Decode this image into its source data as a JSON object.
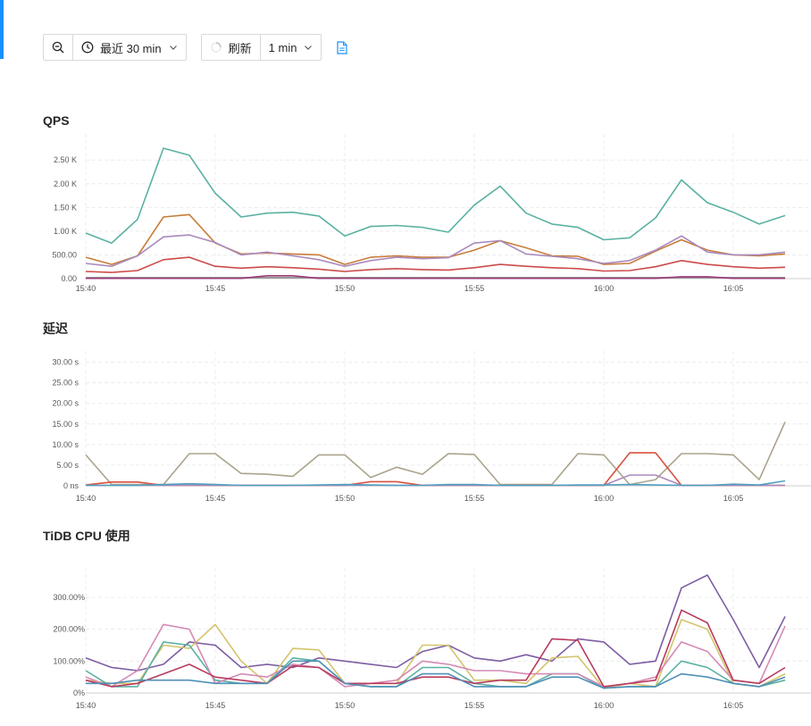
{
  "colors": {
    "accent": "#1890ff",
    "icon_blue": "#1890ff",
    "grid": "#ececec",
    "axis": "#cfcfcf"
  },
  "toolbar": {
    "zoom_out_icon": "zoom-out-icon",
    "time_range_icon": "clock-icon",
    "time_range_label": "最近 30 min",
    "refresh_icon": "spinner-icon",
    "refresh_label": "刷新",
    "refresh_interval_label": "1 min",
    "report_icon": "file-icon"
  },
  "chart_data": [
    {
      "type": "line",
      "title": "QPS",
      "x_ticks": [
        "15:40",
        "15:45",
        "15:50",
        "15:55",
        "16:00",
        "16:05"
      ],
      "x": [
        "15:40",
        "15:41",
        "15:42",
        "15:43",
        "15:44",
        "15:45",
        "15:46",
        "15:47",
        "15:48",
        "15:49",
        "15:50",
        "15:51",
        "15:52",
        "15:53",
        "15:54",
        "15:55",
        "15:56",
        "15:57",
        "15:58",
        "15:59",
        "16:00",
        "16:01",
        "16:02",
        "16:03",
        "16:04",
        "16:05",
        "16:06",
        "16:07"
      ],
      "y_ticks": [
        "0.00",
        "500.00",
        "1.00 K",
        "1.50 K",
        "2.00 K",
        "2.50 K"
      ],
      "ylim": [
        0,
        2900
      ],
      "grid": true,
      "series": [
        {
          "color": "#5ab1a2",
          "values": [
            960,
            750,
            1250,
            2750,
            2600,
            1800,
            1300,
            1380,
            1400,
            1320,
            900,
            1100,
            1120,
            1080,
            980,
            1550,
            1950,
            1380,
            1150,
            1080,
            820,
            860,
            1280,
            2080,
            1600,
            1400,
            1150,
            1330
          ]
        },
        {
          "color": "#c87c3a",
          "values": [
            450,
            300,
            480,
            1300,
            1350,
            750,
            520,
            540,
            520,
            500,
            300,
            450,
            480,
            450,
            450,
            600,
            800,
            650,
            480,
            470,
            300,
            320,
            580,
            820,
            600,
            500,
            480,
            520
          ]
        },
        {
          "color": "#a98abd",
          "values": [
            320,
            260,
            480,
            880,
            920,
            760,
            500,
            560,
            480,
            400,
            260,
            380,
            450,
            420,
            440,
            750,
            800,
            520,
            470,
            420,
            320,
            380,
            600,
            900,
            560,
            500,
            500,
            560
          ]
        },
        {
          "color": "#cc4b4b",
          "values": [
            150,
            130,
            170,
            400,
            450,
            260,
            220,
            250,
            230,
            200,
            150,
            190,
            210,
            190,
            180,
            230,
            300,
            260,
            230,
            210,
            160,
            170,
            250,
            380,
            300,
            250,
            220,
            240
          ]
        },
        {
          "color": "#8a8a8a",
          "values": [
            20,
            20,
            20,
            20,
            20,
            20,
            20,
            20,
            20,
            20,
            20,
            20,
            20,
            20,
            20,
            20,
            20,
            20,
            20,
            20,
            20,
            20,
            20,
            20,
            20,
            20,
            20,
            20
          ]
        },
        {
          "color": "#9b3a7a",
          "values": [
            5,
            5,
            5,
            5,
            5,
            5,
            5,
            60,
            60,
            5,
            5,
            5,
            5,
            5,
            5,
            5,
            5,
            5,
            5,
            5,
            5,
            5,
            5,
            40,
            40,
            5,
            5,
            5
          ]
        }
      ]
    },
    {
      "type": "line",
      "title": "延迟",
      "x_ticks": [
        "15:40",
        "15:45",
        "15:50",
        "15:55",
        "16:00",
        "16:05"
      ],
      "x": [
        "15:40",
        "15:41",
        "15:42",
        "15:43",
        "15:44",
        "15:45",
        "15:46",
        "15:47",
        "15:48",
        "15:49",
        "15:50",
        "15:51",
        "15:52",
        "15:53",
        "15:54",
        "15:55",
        "15:56",
        "15:57",
        "15:58",
        "15:59",
        "16:00",
        "16:01",
        "16:02",
        "16:03",
        "16:04",
        "16:05",
        "16:06",
        "16:07"
      ],
      "y_ticks": [
        "0 ns",
        "5.00 s",
        "10.00 s",
        "15.00 s",
        "20.00 s",
        "25.00 s",
        "30.00 s"
      ],
      "ylim": [
        0,
        31
      ],
      "grid": true,
      "series": [
        {
          "color": "#aba38b",
          "values": [
            7.5,
            0.3,
            0.3,
            0.3,
            7.8,
            7.8,
            3.0,
            2.8,
            2.3,
            7.5,
            7.5,
            2.0,
            4.5,
            2.8,
            7.8,
            7.6,
            0.3,
            0.3,
            0.3,
            7.8,
            7.5,
            0.3,
            1.5,
            7.8,
            7.8,
            7.5,
            1.5,
            15.5
          ]
        },
        {
          "color": "#d9503f",
          "values": [
            0.2,
            0.9,
            0.9,
            0.1,
            0.1,
            0.1,
            0.1,
            0.1,
            0.1,
            0.1,
            0.1,
            1.0,
            1.0,
            0.1,
            0.1,
            0.1,
            0.1,
            0.1,
            0.1,
            0.1,
            0.1,
            8.0,
            8.0,
            0.1,
            0.1,
            0.1,
            0.1,
            0.1
          ]
        },
        {
          "color": "#a98abd",
          "values": [
            0.1,
            0.1,
            0.1,
            0.1,
            0.1,
            0.1,
            0.1,
            0.1,
            0.1,
            0.1,
            0.1,
            0.1,
            0.1,
            0.1,
            0.1,
            0.1,
            0.1,
            0.1,
            0.1,
            0.1,
            0.1,
            2.6,
            2.6,
            0.1,
            0.1,
            0.1,
            0.1,
            0.1
          ]
        },
        {
          "color": "#4f9fc0",
          "values": [
            0.1,
            0.1,
            0.1,
            0.3,
            0.5,
            0.3,
            0.1,
            0.1,
            0.1,
            0.2,
            0.3,
            0.2,
            0.1,
            0.1,
            0.3,
            0.3,
            0.1,
            0.1,
            0.1,
            0.2,
            0.2,
            0.3,
            0.2,
            0.1,
            0.1,
            0.4,
            0.2,
            1.2
          ]
        }
      ]
    },
    {
      "type": "line",
      "title": "TiDB CPU 使用",
      "x_ticks": [
        "15:40",
        "15:45",
        "15:50",
        "15:55",
        "16:00",
        "16:05"
      ],
      "x": [
        "15:40",
        "15:41",
        "15:42",
        "15:43",
        "15:44",
        "15:45",
        "15:46",
        "15:47",
        "15:48",
        "15:49",
        "15:50",
        "15:51",
        "15:52",
        "15:53",
        "15:54",
        "15:55",
        "15:56",
        "15:57",
        "15:58",
        "15:59",
        "16:00",
        "16:01",
        "16:02",
        "16:03",
        "16:04",
        "16:05",
        "16:06",
        "16:07"
      ],
      "y_ticks": [
        "0%",
        "100.00%",
        "200.00%",
        "300.00%"
      ],
      "ylim": [
        0,
        370
      ],
      "grid": true,
      "series": [
        {
          "color": "#7d5ea3",
          "values": [
            110,
            80,
            70,
            90,
            160,
            150,
            80,
            90,
            80,
            110,
            100,
            90,
            80,
            130,
            150,
            110,
            100,
            120,
            100,
            170,
            160,
            90,
            100,
            330,
            370,
            230,
            80,
            240
          ]
        },
        {
          "color": "#d3c46c",
          "values": [
            40,
            30,
            30,
            150,
            140,
            215,
            100,
            30,
            140,
            135,
            30,
            30,
            30,
            150,
            150,
            40,
            40,
            30,
            110,
            115,
            15,
            30,
            20,
            230,
            200,
            30,
            20,
            60
          ]
        },
        {
          "color": "#5ab1a2",
          "values": [
            70,
            20,
            20,
            160,
            150,
            40,
            30,
            30,
            110,
            100,
            30,
            20,
            20,
            80,
            80,
            30,
            20,
            20,
            60,
            60,
            15,
            20,
            20,
            100,
            80,
            30,
            20,
            40
          ]
        },
        {
          "color": "#d68ab5",
          "values": [
            50,
            20,
            70,
            215,
            200,
            30,
            60,
            50,
            90,
            80,
            20,
            30,
            40,
            100,
            90,
            70,
            70,
            60,
            60,
            60,
            20,
            30,
            50,
            160,
            130,
            40,
            30,
            210
          ]
        },
        {
          "color": "#b83b5e",
          "values": [
            40,
            20,
            30,
            60,
            90,
            50,
            40,
            30,
            85,
            80,
            30,
            30,
            30,
            50,
            50,
            30,
            40,
            40,
            170,
            165,
            20,
            30,
            40,
            260,
            220,
            40,
            30,
            80
          ]
        },
        {
          "color": "#4f8fb8",
          "values": [
            30,
            30,
            40,
            40,
            40,
            30,
            30,
            30,
            100,
            100,
            30,
            20,
            20,
            60,
            60,
            20,
            20,
            20,
            50,
            50,
            15,
            20,
            20,
            60,
            50,
            30,
            20,
            50
          ]
        }
      ]
    }
  ]
}
